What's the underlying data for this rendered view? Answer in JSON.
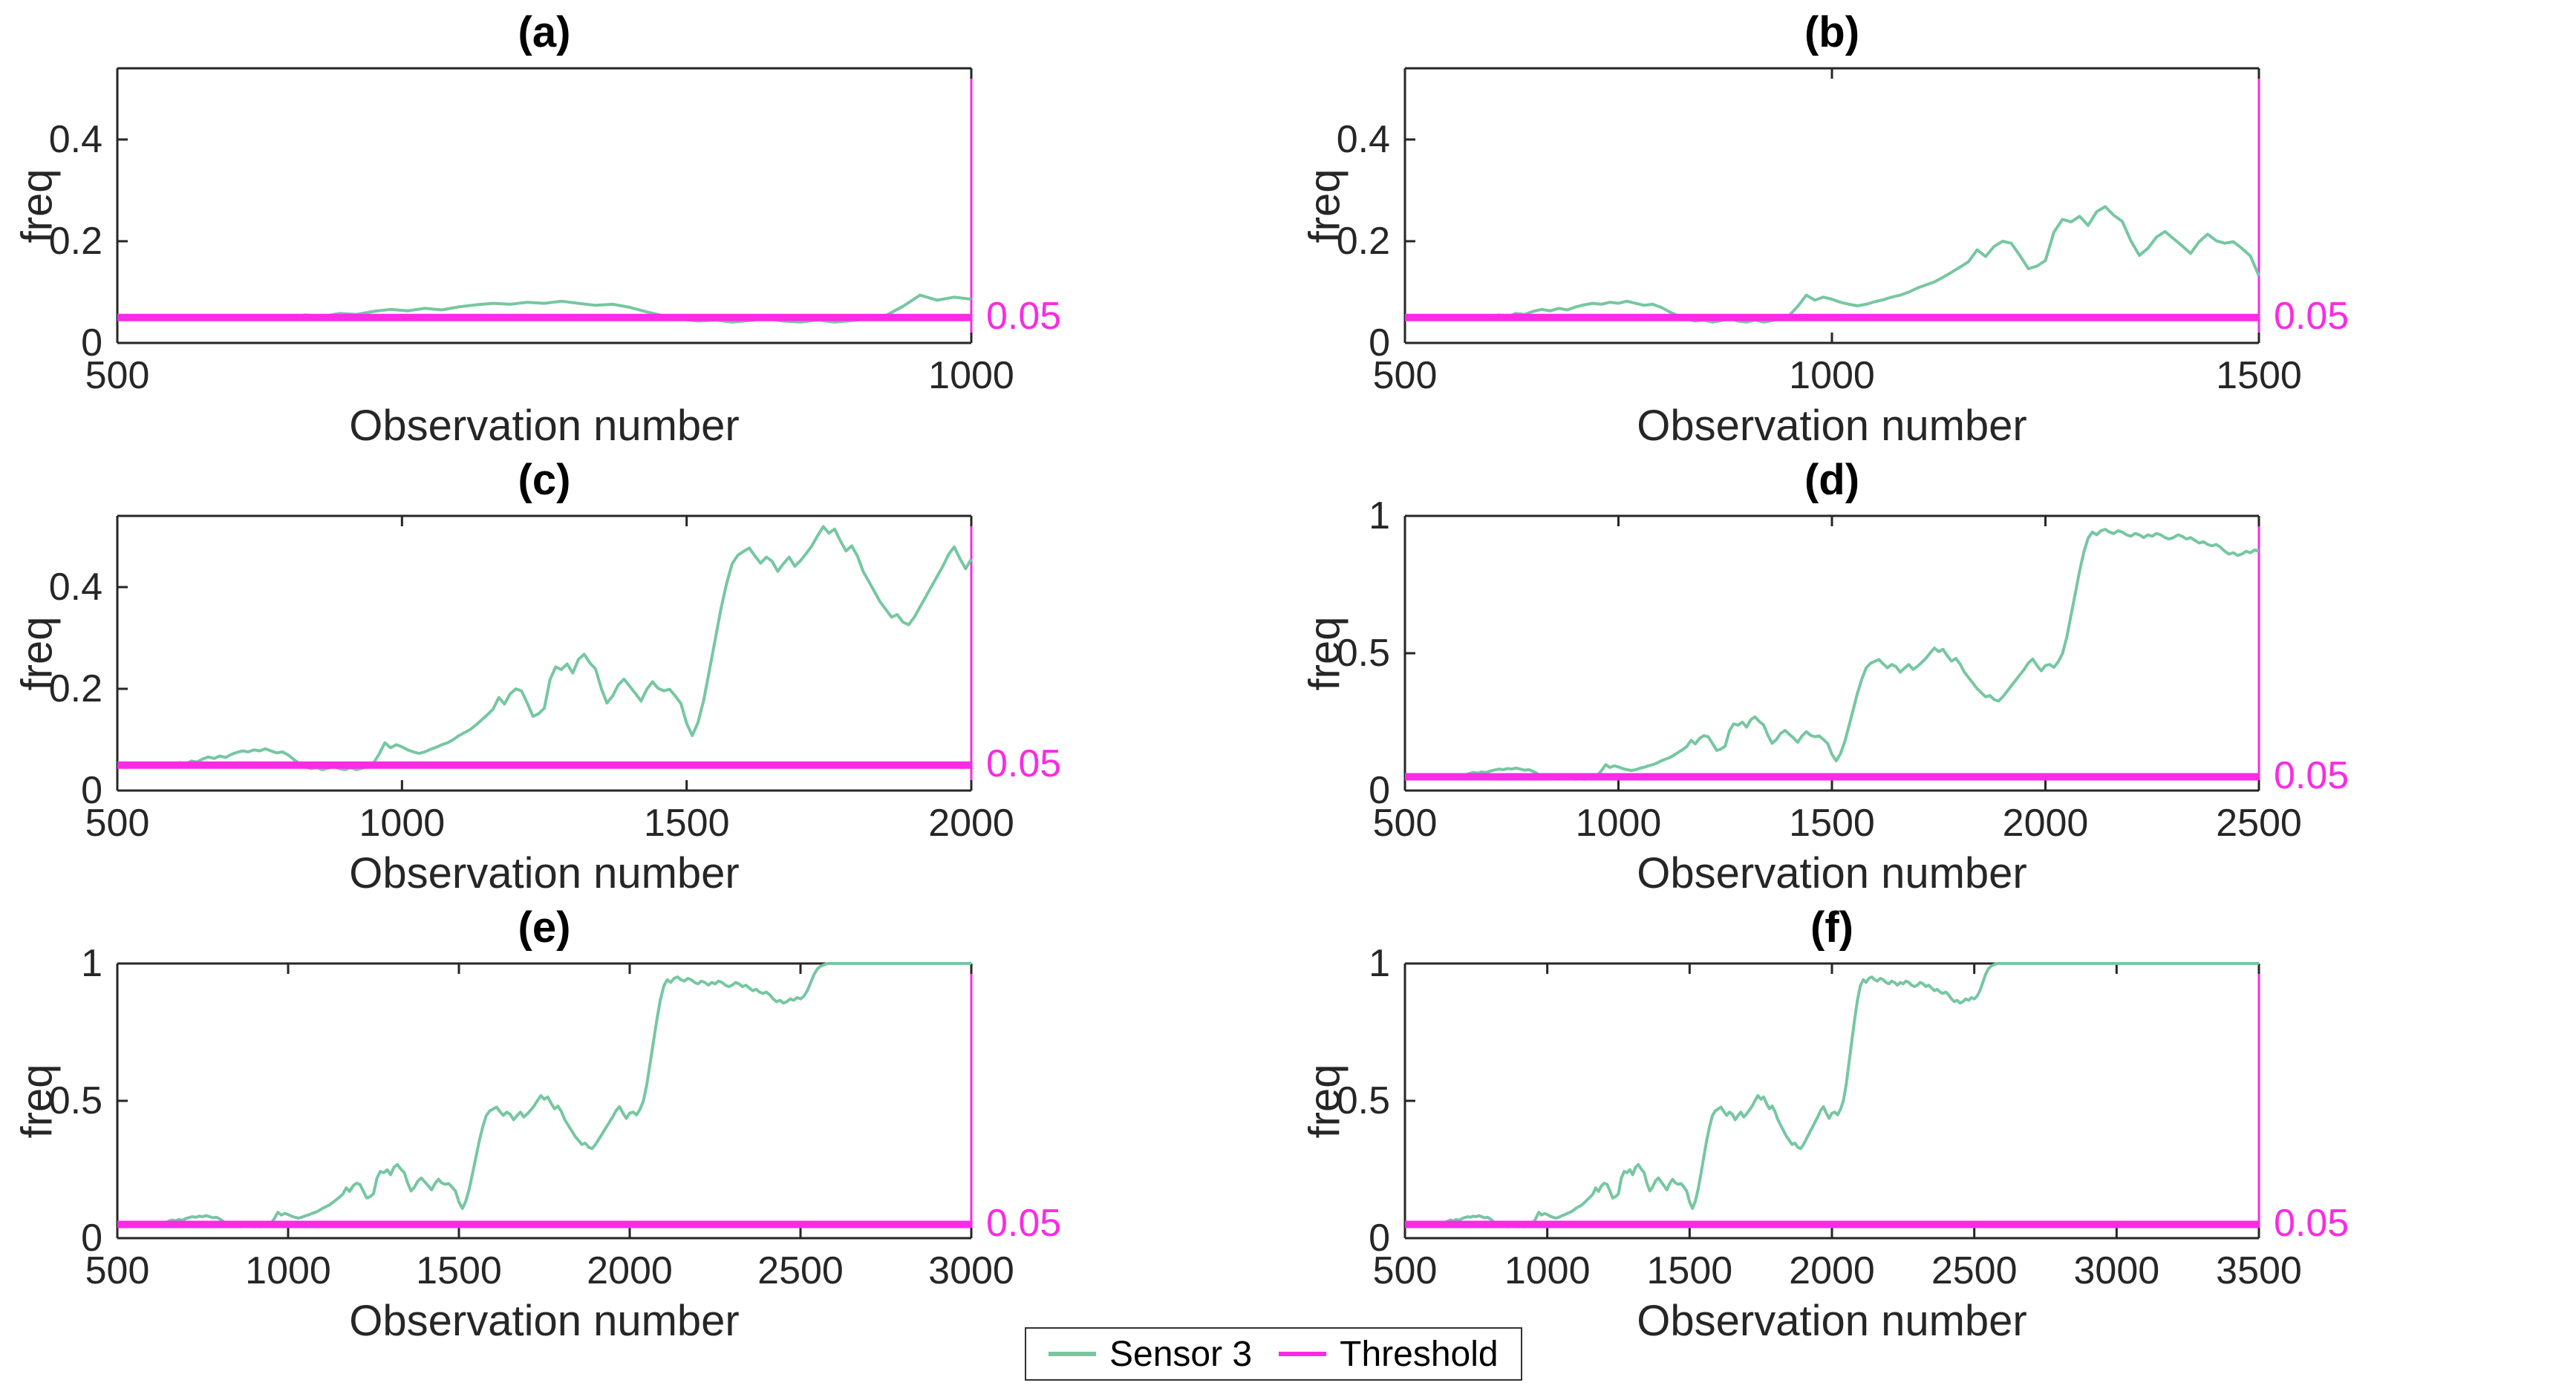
{
  "chart_data": {
    "type": "line",
    "xlabel": "Observation number",
    "ylabel": "freq",
    "grid": false,
    "legend_position": "bottom-center",
    "threshold": {
      "name": "Threshold",
      "value": 0.05,
      "label": "0.05",
      "color": "#FA2BE4"
    },
    "series": {
      "name": "Sensor 3",
      "color": "#76C7A1",
      "x_start": 600,
      "x_step": 10,
      "values": [
        0.05,
        0.055,
        0.052,
        0.058,
        0.056,
        0.062,
        0.066,
        0.063,
        0.068,
        0.065,
        0.071,
        0.075,
        0.078,
        0.076,
        0.08,
        0.078,
        0.082,
        0.078,
        0.074,
        0.076,
        0.07,
        0.061,
        0.053,
        0.047,
        0.043,
        0.045,
        0.041,
        0.044,
        0.048,
        0.043,
        0.041,
        0.045,
        0.041,
        0.044,
        0.048,
        0.054,
        0.072,
        0.094,
        0.084,
        0.09,
        0.086,
        0.08,
        0.076,
        0.073,
        0.076,
        0.081,
        0.085,
        0.09,
        0.094,
        0.1,
        0.108,
        0.114,
        0.12,
        0.129,
        0.139,
        0.149,
        0.16,
        0.183,
        0.17,
        0.19,
        0.2,
        0.196,
        0.172,
        0.146,
        0.151,
        0.162,
        0.218,
        0.243,
        0.238,
        0.249,
        0.231,
        0.258,
        0.268,
        0.251,
        0.239,
        0.201,
        0.172,
        0.186,
        0.208,
        0.219,
        0.205,
        0.191,
        0.176,
        0.199,
        0.214,
        0.201,
        0.196,
        0.199,
        0.186,
        0.171,
        0.132,
        0.108,
        0.134,
        0.178,
        0.236,
        0.296,
        0.356,
        0.406,
        0.446,
        0.463,
        0.47,
        0.477,
        0.461,
        0.447,
        0.459,
        0.451,
        0.431,
        0.446,
        0.459,
        0.441,
        0.452,
        0.466,
        0.481,
        0.501,
        0.519,
        0.506,
        0.514,
        0.491,
        0.471,
        0.481,
        0.461,
        0.431,
        0.411,
        0.391,
        0.371,
        0.356,
        0.341,
        0.346,
        0.331,
        0.326,
        0.341,
        0.361,
        0.381,
        0.401,
        0.421,
        0.441,
        0.464,
        0.479,
        0.456,
        0.436,
        0.455,
        0.459,
        0.449,
        0.469,
        0.499,
        0.559,
        0.639,
        0.719,
        0.799,
        0.869,
        0.919,
        0.941,
        0.931,
        0.946,
        0.951,
        0.941,
        0.936,
        0.946,
        0.941,
        0.931,
        0.926,
        0.936,
        0.931,
        0.921,
        0.931,
        0.926,
        0.936,
        0.931,
        0.921,
        0.916,
        0.921,
        0.931,
        0.926,
        0.916,
        0.921,
        0.911,
        0.901,
        0.906,
        0.896,
        0.891,
        0.896,
        0.886,
        0.871,
        0.861,
        0.866,
        0.856,
        0.861,
        0.871,
        0.866,
        0.876,
        0.871,
        0.881,
        0.901,
        0.931,
        0.961,
        0.981,
        0.991,
        0.996,
        1.0,
        1.0,
        1.0,
        1.0,
        1.0,
        1.0,
        1.0,
        1.0,
        1.0,
        1.0,
        1.0,
        1.0,
        1.0,
        1.0,
        1.0,
        1.0,
        1.0,
        1.0,
        1.0,
        1.0,
        1.0,
        1.0,
        1.0,
        1.0,
        1.0,
        1.0,
        1.0,
        1.0,
        1.0,
        1.0,
        1.0,
        1.0,
        1.0,
        1.0,
        1.0,
        1.0,
        1.0,
        1.0,
        1.0,
        1.0,
        1.0,
        1.0,
        1.0,
        1.0,
        1.0,
        1.0,
        1.0,
        1.0,
        1.0,
        1.0,
        1.0,
        1.0,
        1.0,
        1.0,
        1.0,
        1.0,
        1.0,
        1.0,
        1.0,
        1.0,
        1.0,
        1.0,
        1.0,
        1.0,
        1.0,
        1.0,
        1.0,
        1.0,
        1.0,
        1.0,
        1.0,
        1.0,
        1.0,
        1.0,
        1.0,
        1.0,
        1.0,
        1.0,
        1.0,
        1.0,
        1.0,
        1.0,
        1.0,
        1.0,
        1.0,
        1.0,
        1.0,
        1.0,
        1.0,
        1.0,
        1.0,
        1.0,
        1.0
      ]
    },
    "panels": [
      {
        "title": "(a)",
        "xlim": [
          500,
          1000
        ],
        "ylim_max": 0.54,
        "xticks": [
          500,
          1000
        ],
        "ytick_labels": [
          "0",
          "0.2",
          "0.4"
        ]
      },
      {
        "title": "(b)",
        "xlim": [
          500,
          1500
        ],
        "ylim_max": 0.54,
        "xticks": [
          500,
          1000,
          1500
        ],
        "ytick_labels": [
          "0",
          "0.2",
          "0.4"
        ]
      },
      {
        "title": "(c)",
        "xlim": [
          500,
          2000
        ],
        "ylim_max": 0.54,
        "xticks": [
          500,
          1000,
          1500,
          2000
        ],
        "ytick_labels": [
          "0",
          "0.2",
          "0.4"
        ]
      },
      {
        "title": "(d)",
        "xlim": [
          500,
          2500
        ],
        "ylim_max": 1.0,
        "xticks": [
          500,
          1000,
          1500,
          2000,
          2500
        ],
        "ytick_labels": [
          "0",
          "0.5",
          "1"
        ]
      },
      {
        "title": "(e)",
        "xlim": [
          500,
          3000
        ],
        "ylim_max": 1.0,
        "xticks": [
          500,
          1000,
          1500,
          2000,
          2500,
          3000
        ],
        "ytick_labels": [
          "0",
          "0.5",
          "1"
        ]
      },
      {
        "title": "(f)",
        "xlim": [
          500,
          3500
        ],
        "ylim_max": 1.0,
        "xticks": [
          500,
          1000,
          1500,
          2000,
          2500,
          3000,
          3500
        ],
        "ytick_labels": [
          "0",
          "0.5",
          "1"
        ]
      }
    ],
    "axis_color": "#262626"
  },
  "legend": {
    "items": [
      {
        "label": "Sensor 3",
        "color": "#76C7A1"
      },
      {
        "label": "Threshold",
        "color": "#FA2BE4"
      }
    ]
  }
}
